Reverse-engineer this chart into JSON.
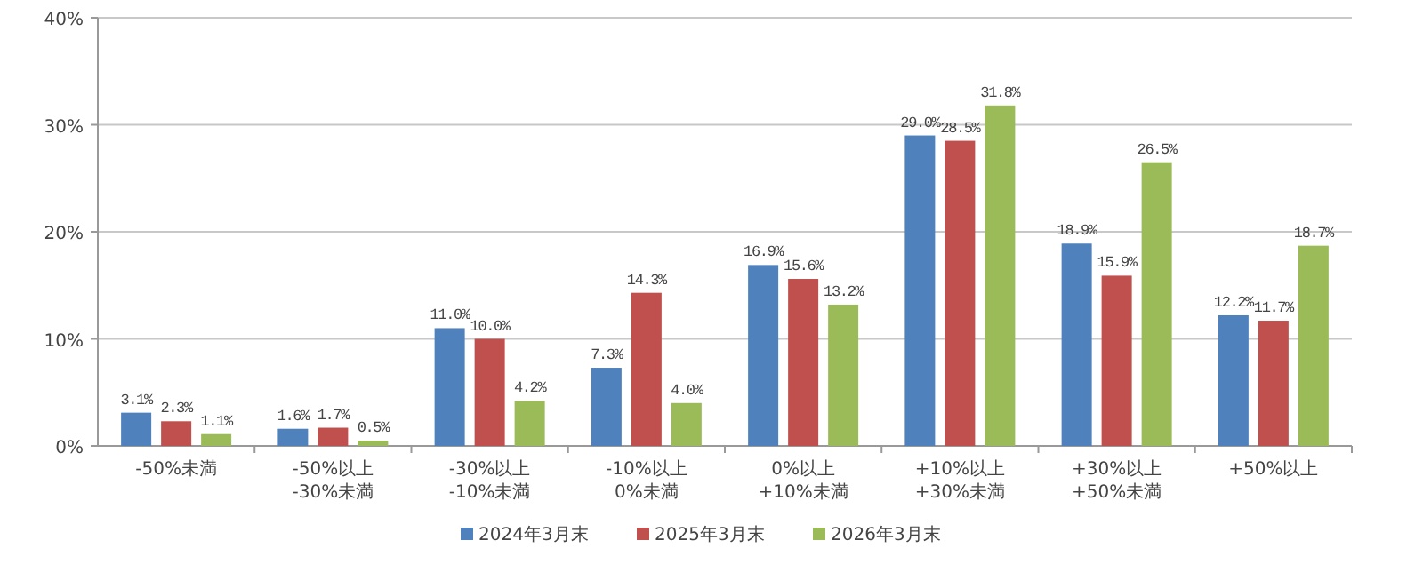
{
  "chart_data": {
    "type": "bar",
    "categories": [
      "-50%未満",
      "-50%以上\n-30%未満",
      "-30%以上\n-10%未満",
      "-10%以上\n0%未満",
      "0%以上\n+10%未満",
      "+10%以上\n+30%未満",
      "+30%以上\n+50%未満",
      "+50%以上"
    ],
    "series": [
      {
        "name": "2024年3月末",
        "color": "#4f81bd",
        "values": [
          3.1,
          1.6,
          11.0,
          7.3,
          16.9,
          29.0,
          18.9,
          12.2
        ],
        "value_labels": [
          "3.1%",
          "1.6%",
          "11.0%",
          "7.3%",
          "16.9%",
          "29.0%",
          "18.9%",
          "12.2%"
        ]
      },
      {
        "name": "2025年3月末",
        "color": "#c0504d",
        "values": [
          2.3,
          1.7,
          10.0,
          14.3,
          15.6,
          28.5,
          15.9,
          11.7
        ],
        "value_labels": [
          "2.3%",
          "1.7%",
          "10.0%",
          "14.3%",
          "15.6%",
          "28.5%",
          "15.9%",
          "11.7%"
        ]
      },
      {
        "name": "2026年3月末",
        "color": "#9bbb59",
        "values": [
          1.1,
          0.5,
          4.2,
          4.0,
          13.2,
          31.8,
          26.5,
          18.7
        ],
        "value_labels": [
          "1.1%",
          "0.5%",
          "4.2%",
          "4.0%",
          "13.2%",
          "31.8%",
          "26.5%",
          "18.7%"
        ]
      }
    ],
    "ylim": [
      0,
      40
    ],
    "yticks": [
      {
        "value": 0,
        "label": "0%"
      },
      {
        "value": 10,
        "label": "10%"
      },
      {
        "value": 20,
        "label": "20%"
      },
      {
        "value": 30,
        "label": "30%"
      },
      {
        "value": 40,
        "label": "40%"
      }
    ],
    "grid": "y",
    "legend": "bottom"
  }
}
